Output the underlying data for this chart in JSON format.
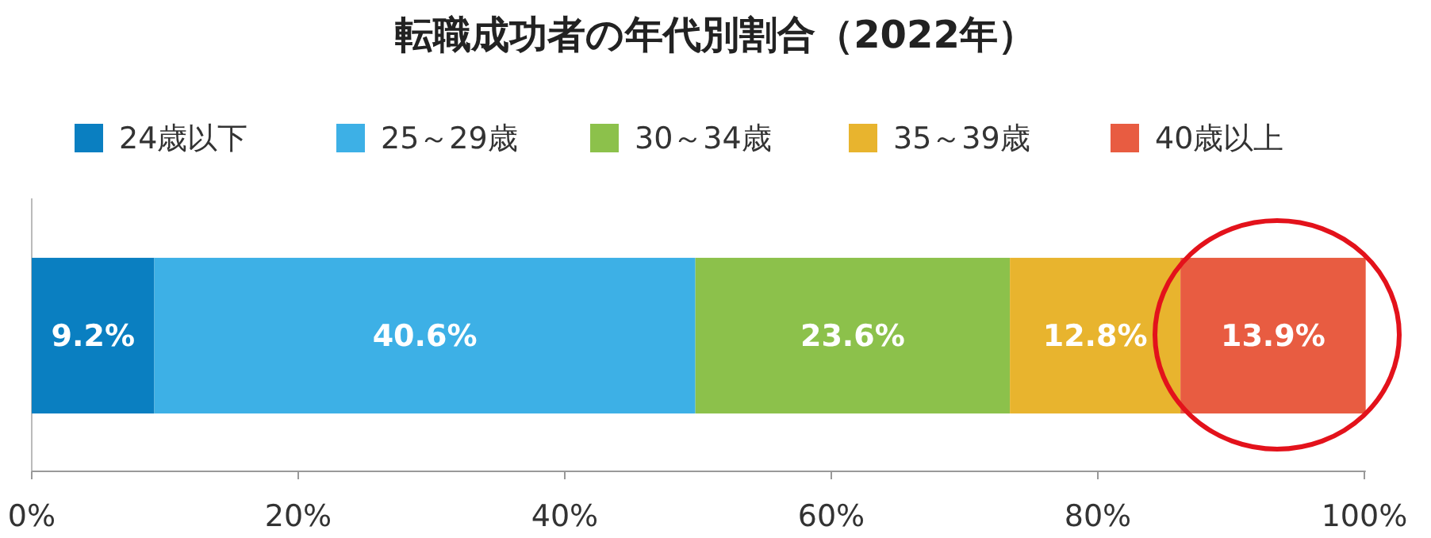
{
  "chart_data": {
    "type": "bar",
    "title": "転職成功者の年代別割合（2022年）",
    "orientation": "horizontal",
    "stacked": true,
    "categories": [
      null
    ],
    "series": [
      {
        "name": "24歳以下",
        "color": "#0a7fc1",
        "values": [
          9.2
        ],
        "value_labels": [
          "9.2%"
        ]
      },
      {
        "name": "25～29歳",
        "color": "#3db0e6",
        "values": [
          40.6
        ],
        "value_labels": [
          "40.6%"
        ]
      },
      {
        "name": "30～34歳",
        "color": "#8cc14b",
        "values": [
          23.6
        ],
        "value_labels": [
          "23.6%"
        ]
      },
      {
        "name": "35～39歳",
        "color": "#e8b42e",
        "values": [
          12.8
        ],
        "value_labels": [
          "12.8%"
        ]
      },
      {
        "name": "40歳以上",
        "color": "#e85c41",
        "values": [
          13.9
        ],
        "value_labels": [
          "13.9%"
        ]
      }
    ],
    "xlim": [
      0,
      100.1
    ],
    "xticks": [
      {
        "value": 0,
        "label": "0%"
      },
      {
        "value": 20,
        "label": "20%"
      },
      {
        "value": 40,
        "label": "40%"
      },
      {
        "value": 60,
        "label": "60%"
      },
      {
        "value": 80,
        "label": "80%"
      },
      {
        "value": 100,
        "label": "100%"
      }
    ],
    "legend": "top",
    "grid": false
  }
}
